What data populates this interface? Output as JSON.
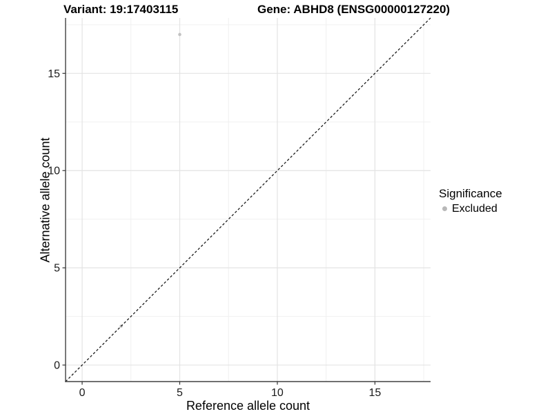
{
  "header": {
    "variant_title": "Variant: 19:17403115",
    "gene_title": "Gene: ABHD8 (ENSG00000127220)"
  },
  "chart_data": {
    "type": "scatter",
    "xlabel": "Reference allele count",
    "ylabel": "Alternative allele count",
    "xlim": [
      -0.85,
      17.85
    ],
    "ylim": [
      -0.85,
      17.85
    ],
    "x_major_ticks": [
      0,
      5,
      10,
      15
    ],
    "x_minor_ticks": [
      2.5,
      7.5,
      12.5,
      17.5
    ],
    "y_major_ticks": [
      0,
      5,
      10,
      15
    ],
    "y_minor_ticks": [
      2.5,
      7.5,
      12.5,
      17.5
    ],
    "grid": "major+minor",
    "identity_line": {
      "slope": 1,
      "intercept": 0,
      "style": "dashed",
      "color": "#1a1a1a"
    },
    "series": [
      {
        "name": "Excluded",
        "color": "#c2c2c2",
        "points": [
          [
            5,
            17
          ],
          [
            2,
            2
          ]
        ]
      }
    ],
    "legend": {
      "title": "Significance",
      "position": "right",
      "entries": [
        {
          "label": "Excluded",
          "color": "#b8b8b8"
        }
      ]
    },
    "colors": {
      "grid_major": "#e3e3e3",
      "grid_minor": "#f0f0f0",
      "axis_line": "#404040",
      "tick_mark": "#333333",
      "tick_text": "#1a1a1a"
    }
  }
}
